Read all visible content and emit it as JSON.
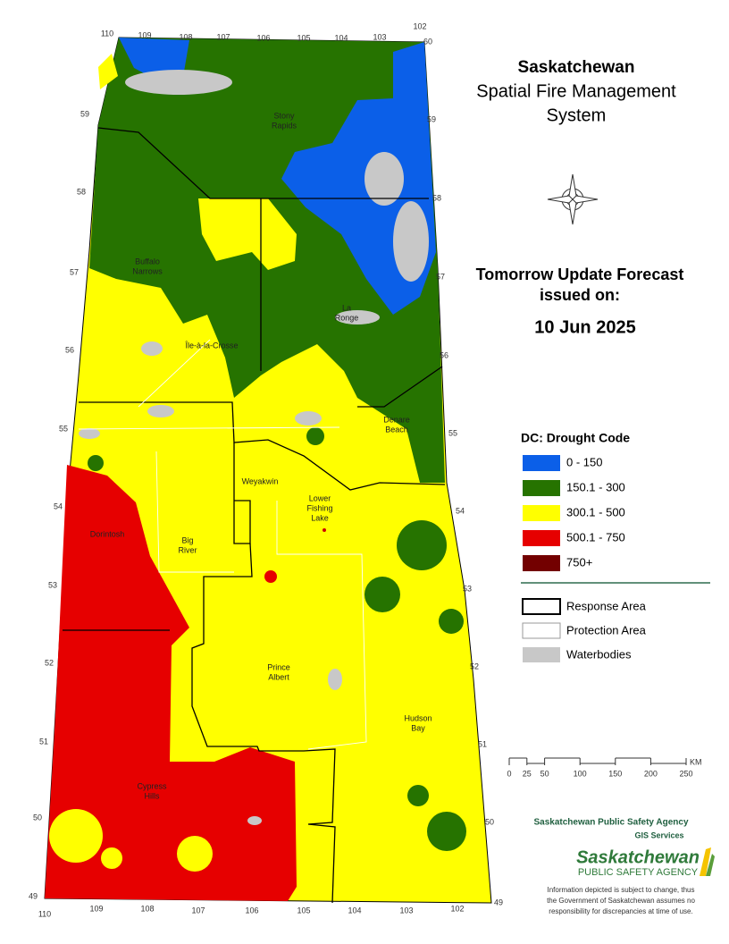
{
  "header": {
    "title": "Saskatchewan",
    "subtitle_lines": [
      "Spatial Fire Management",
      "System"
    ]
  },
  "forecast": {
    "lines": [
      "Tomorrow Update Forecast",
      "issued on:"
    ],
    "date": "10 Jun 2025"
  },
  "legend": {
    "title": "DC: Drought Code",
    "classes": [
      {
        "label": "0 - 150",
        "color": "#0b5fe8"
      },
      {
        "label": "150.1 - 300",
        "color": "#267300"
      },
      {
        "label": "300.1 - 500",
        "color": "#ffff00"
      },
      {
        "label": "500.1 - 750",
        "color": "#e60000"
      },
      {
        "label": "750+",
        "color": "#730000"
      }
    ],
    "layers": [
      {
        "label": "Response Area"
      },
      {
        "label": "Protection Area"
      },
      {
        "label": "Waterbodies"
      }
    ]
  },
  "scale": {
    "ticks": [
      0,
      25,
      50,
      100,
      150,
      200,
      250
    ],
    "unit": "KM"
  },
  "map": {
    "places": [
      {
        "lines": [
          "Stony",
          "Rapids"
        ]
      },
      {
        "lines": [
          "Buffalo",
          "Narrows"
        ]
      },
      {
        "lines": [
          "La",
          "Ronge"
        ]
      },
      {
        "lines": [
          "Île-à-la-Crosse"
        ]
      },
      {
        "lines": [
          "Denare",
          "Beach"
        ]
      },
      {
        "lines": [
          "Weyakwin"
        ]
      },
      {
        "lines": [
          "Lower",
          "Fishing",
          "Lake"
        ]
      },
      {
        "lines": [
          "Big",
          "River"
        ]
      },
      {
        "lines": [
          "Dorintosh"
        ]
      },
      {
        "lines": [
          "Prince",
          "Albert"
        ]
      },
      {
        "lines": [
          "Hudson",
          "Bay"
        ]
      },
      {
        "lines": [
          "Cypress",
          "Hills"
        ]
      }
    ],
    "longitudes_top": [
      110,
      109,
      108,
      107,
      106,
      105,
      104,
      103,
      102
    ],
    "longitudes_bottom": [
      110,
      109,
      108,
      107,
      106,
      105,
      104,
      103,
      102
    ],
    "latitudes_left": [
      59,
      58,
      57,
      56,
      55,
      54,
      53,
      52,
      51,
      50,
      49
    ],
    "latitudes_right": [
      60,
      59,
      58,
      57,
      56,
      55,
      54,
      53,
      52,
      51,
      50,
      49
    ]
  },
  "credits": {
    "agency": "Saskatchewan Public Safety Agency",
    "unit": "GIS  Services",
    "logo_name": "Saskatchewan",
    "logo_sub": "PUBLIC SAFETY AGENCY",
    "disclaimer": [
      "Information depicted is subject to change, thus",
      "the Government of Saskatchewan assumes no",
      "responsibility for discrepancies at time of use."
    ]
  }
}
